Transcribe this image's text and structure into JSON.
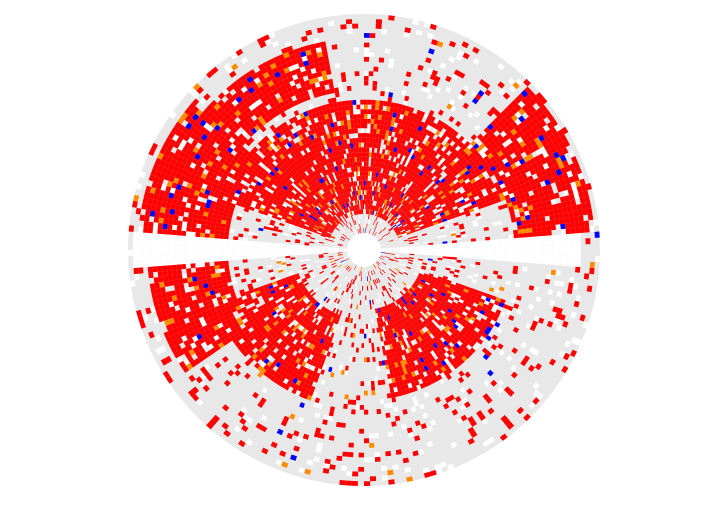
{
  "chart_data": {
    "type": "heatmap",
    "projection": "polar",
    "title": "",
    "xlabel": "",
    "ylabel": "",
    "grid": false,
    "legend": "none",
    "axes_visible": false,
    "angle_range_deg": [
      0,
      360
    ],
    "radius_range": [
      0,
      1
    ],
    "background_color": "#e8e8e8",
    "categories": [
      {
        "name": "",
        "color": "#ff0000",
        "share_estimate": 0.55
      },
      {
        "name": "",
        "color": "#ffffff",
        "share_estimate": 0.3
      },
      {
        "name": "",
        "color": "#ff8c00",
        "share_estimate": 0.08
      },
      {
        "name": "",
        "color": "#0000ff",
        "share_estimate": 0.07
      }
    ],
    "regions": [
      {
        "category": 0,
        "angle_deg": [
          20,
          160
        ],
        "radius": [
          0.08,
          0.6
        ]
      },
      {
        "category": 0,
        "angle_deg": [
          100,
          150
        ],
        "radius": [
          0.65,
          0.9
        ]
      },
      {
        "category": 0,
        "angle_deg": [
          140,
          175
        ],
        "radius": [
          0.55,
          0.95
        ]
      },
      {
        "category": 0,
        "angle_deg": [
          5,
          45
        ],
        "radius": [
          0.6,
          0.98
        ]
      },
      {
        "category": 0,
        "angle_deg": [
          200,
          250
        ],
        "radius": [
          0.25,
          0.65
        ]
      },
      {
        "category": 0,
        "angle_deg": [
          280,
          340
        ],
        "radius": [
          0.2,
          0.6
        ]
      },
      {
        "category": 0,
        "angle_deg": [
          185,
          215
        ],
        "radius": [
          0.55,
          0.92
        ]
      },
      {
        "category": 1,
        "angle_deg": [
          0,
          360
        ],
        "radius": [
          0.0,
          0.08
        ]
      },
      {
        "category": 1,
        "angle_deg": [
          -4,
          4
        ],
        "radius": [
          0.0,
          0.92
        ]
      },
      {
        "category": 1,
        "angle_deg": [
          176,
          184
        ],
        "radius": [
          0.0,
          0.98
        ]
      }
    ]
  }
}
